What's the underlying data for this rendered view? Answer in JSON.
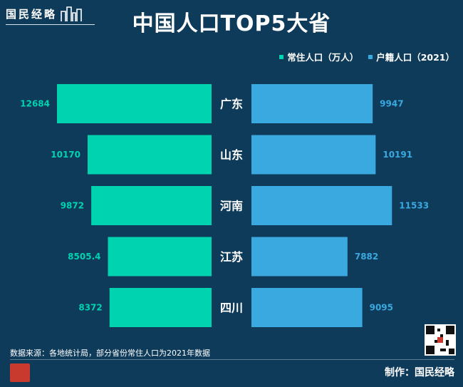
{
  "brand": {
    "name": "国民经略"
  },
  "title": "中国人口TOP5大省",
  "legend": [
    {
      "label": "常住人口（万人）",
      "color": "#00d3b0"
    },
    {
      "label": "户籍人口（2021）",
      "color": "#3aa9df"
    }
  ],
  "chart_data": {
    "type": "bar",
    "orientation": "horizontal-butterfly",
    "categories": [
      "广东",
      "山东",
      "河南",
      "江苏",
      "四川"
    ],
    "series": [
      {
        "name": "常住人口（万人）",
        "color": "#00d3b0",
        "values": [
          12684,
          10170,
          9872,
          8505.4,
          8372
        ],
        "labels": [
          "12684",
          "10170",
          "9872",
          "8505.4",
          "8372"
        ]
      },
      {
        "name": "户籍人口（2021）",
        "color": "#3aa9df",
        "values": [
          9947,
          10191,
          11533,
          7882,
          9095
        ],
        "labels": [
          "9947",
          "10191",
          "11533",
          "7882",
          "9095"
        ]
      }
    ]
  },
  "footer": {
    "note": "数据来源：各地统计局，部分省份常住人口为2021年数据",
    "credit": "制作：国民经略"
  }
}
